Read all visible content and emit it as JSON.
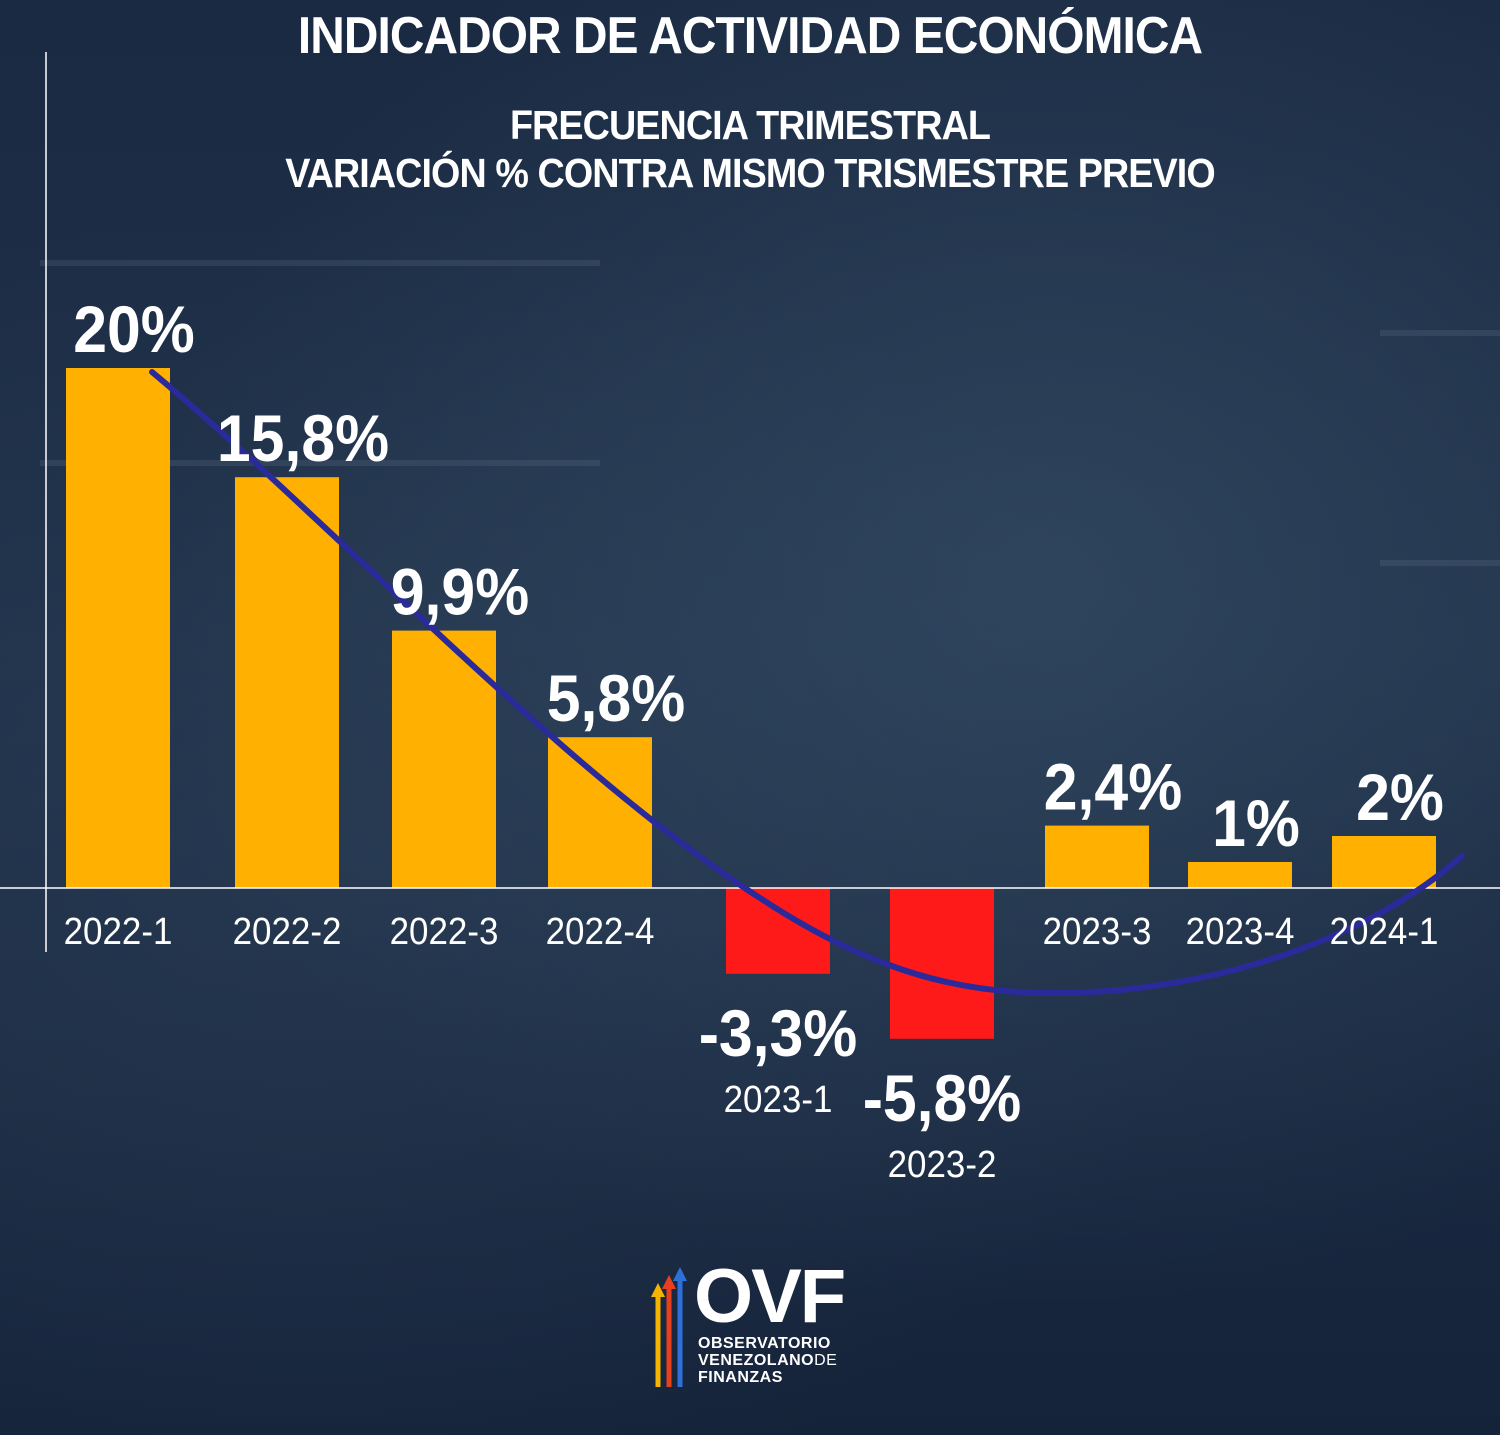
{
  "header": {
    "title": "INDICADOR DE ACTIVIDAD ECONÓMICA",
    "subtitle_line1": "FRECUENCIA TRIMESTRAL",
    "subtitle_line2": "VARIACIÓN % CONTRA MISMO TRISMESTRE PREVIO"
  },
  "chart_data": {
    "type": "bar",
    "title": "INDICADOR DE ACTIVIDAD ECONÓMICA",
    "subtitle": "FRECUENCIA TRIMESTRAL / VARIACIÓN % CONTRA MISMO TRISMESTRE PREVIO",
    "xlabel": "",
    "ylabel": "",
    "categories": [
      "2022-1",
      "2022-2",
      "2022-3",
      "2022-4",
      "2023-1",
      "2023-2",
      "2023-3",
      "2023-4",
      "2024-1"
    ],
    "values": [
      20,
      15.8,
      9.9,
      5.8,
      -3.3,
      -5.8,
      2.4,
      1,
      2
    ],
    "value_labels": [
      "20%",
      "15,8%",
      "9,9%",
      "5,8%",
      "-3,3%",
      "-5,8%",
      "2,4%",
      "1%",
      "2%"
    ],
    "ylim": [
      -6.5,
      21
    ],
    "grid": false,
    "legend": "none",
    "trend_line": true,
    "colors": {
      "positive": "#ffb000",
      "negative": "#ff1a1a",
      "trend": "#2a2a9a",
      "axis": "#ffffff",
      "text": "#ffffff"
    }
  },
  "logo": {
    "acronym": "OVF",
    "line1": "OBSERVATORIO",
    "line2": "VENEZOLANO",
    "line2_suffix": "DE",
    "line3": "FINANZAS",
    "colors": [
      "#f5b400",
      "#e8401c",
      "#2e6fd8"
    ]
  }
}
